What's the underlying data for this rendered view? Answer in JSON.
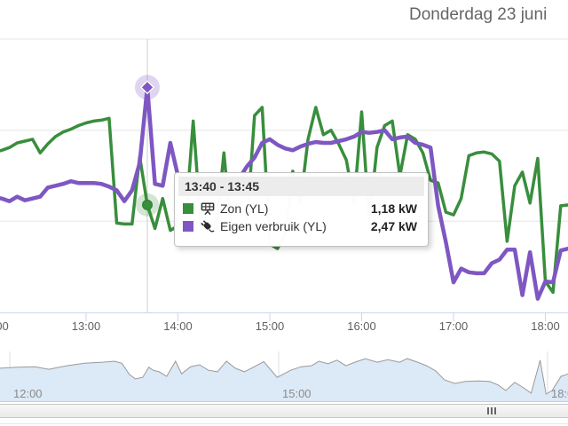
{
  "title": "Donderdag 23 juni",
  "tooltip": {
    "header": "13:40 - 13:45",
    "rows": [
      {
        "label": "Zon (YL)",
        "value": "1,18 kW",
        "color": "#388e3c",
        "icon": "solar-panel"
      },
      {
        "label": "Eigen verbruik (YL)",
        "value": "2,47 kW",
        "color": "#7e57c2",
        "icon": "power-plug"
      }
    ]
  },
  "colors": {
    "zon": "#388e3c",
    "eigen_verbruik": "#7e57c2",
    "gridline": "#e6e6e6",
    "axis_line": "#ccd6eb",
    "crosshair": "#cfcfcf",
    "navigator_fill": "#dce9f6",
    "navigator_outline": "#9a9a9a",
    "title_text": "#666666",
    "axis_label_text": "#606060"
  },
  "x_axis": {
    "tick_labels": [
      "12:00",
      "13:00",
      "14:00",
      "15:00",
      "16:00",
      "17:00",
      "18:00"
    ]
  },
  "chart_data": {
    "type": "line",
    "title": "Donderdag 23 juni",
    "xlabel": "",
    "ylabel": "kW",
    "ylim": [
      0,
      3
    ],
    "grid": "horizontal",
    "x_ticks": [
      "12:00",
      "13:00",
      "14:00",
      "15:00",
      "16:00",
      "17:00",
      "18:00"
    ],
    "visible_range": [
      "12:00",
      "18:15"
    ],
    "highlight": {
      "time": "13:40",
      "label": "13:40 - 13:45",
      "zon_kw": 1.18,
      "verbruik_kw": 2.47
    },
    "times": [
      "12:00",
      "12:05",
      "12:10",
      "12:15",
      "12:20",
      "12:25",
      "12:30",
      "12:35",
      "12:40",
      "12:45",
      "12:50",
      "12:55",
      "13:00",
      "13:05",
      "13:10",
      "13:15",
      "13:20",
      "13:25",
      "13:30",
      "13:35",
      "13:40",
      "13:45",
      "13:50",
      "13:55",
      "14:00",
      "14:05",
      "14:10",
      "14:15",
      "14:20",
      "14:25",
      "14:30",
      "14:35",
      "14:40",
      "14:45",
      "14:50",
      "14:55",
      "15:00",
      "15:05",
      "15:10",
      "15:15",
      "15:20",
      "15:25",
      "15:30",
      "15:35",
      "15:40",
      "15:45",
      "15:50",
      "15:55",
      "16:00",
      "16:05",
      "16:10",
      "16:15",
      "16:20",
      "16:25",
      "16:30",
      "16:35",
      "16:40",
      "16:45",
      "16:50",
      "16:55",
      "17:00",
      "17:05",
      "17:10",
      "17:15",
      "17:20",
      "17:25",
      "17:30",
      "17:35",
      "17:40",
      "17:45",
      "17:50",
      "17:55",
      "18:00",
      "18:05",
      "18:10",
      "18:15"
    ],
    "series": [
      {
        "name": "Zon (YL)",
        "color": "#388e3c",
        "values": [
          1.76,
          1.78,
          1.81,
          1.86,
          1.88,
          1.9,
          1.75,
          1.85,
          1.93,
          1.98,
          2.01,
          2.05,
          2.08,
          2.1,
          2.11,
          2.13,
          0.98,
          0.97,
          0.97,
          1.71,
          1.18,
          0.92,
          1.25,
          0.9,
          0.95,
          1.0,
          2.1,
          0.95,
          0.9,
          0.92,
          1.75,
          0.85,
          0.9,
          0.95,
          2.16,
          2.25,
          0.75,
          0.7,
          0.85,
          1.55,
          1.2,
          1.9,
          2.25,
          1.95,
          2.0,
          1.85,
          1.67,
          1.2,
          2.2,
          1.0,
          1.81,
          2.05,
          2.1,
          1.5,
          1.95,
          1.9,
          1.75,
          1.45,
          1.42,
          1.1,
          1.07,
          1.25,
          1.72,
          1.75,
          1.76,
          1.74,
          1.66,
          0.78,
          1.39,
          1.54,
          1.2,
          1.69,
          0.34,
          0.22,
          1.17,
          1.18
        ]
      },
      {
        "name": "Eigen verbruik (YL)",
        "color": "#7e57c2",
        "values": [
          1.26,
          1.25,
          1.22,
          1.27,
          1.23,
          1.25,
          1.27,
          1.37,
          1.39,
          1.41,
          1.44,
          1.42,
          1.42,
          1.42,
          1.41,
          1.38,
          1.34,
          1.22,
          1.34,
          1.64,
          2.47,
          1.41,
          1.39,
          1.86,
          1.5,
          1.45,
          1.48,
          1.44,
          1.46,
          1.43,
          1.45,
          1.44,
          1.47,
          1.6,
          1.7,
          1.86,
          1.9,
          1.84,
          1.8,
          1.78,
          1.82,
          1.85,
          1.87,
          1.86,
          1.86,
          1.88,
          1.9,
          1.93,
          1.98,
          1.97,
          1.98,
          2.0,
          1.9,
          1.92,
          1.93,
          1.86,
          1.84,
          1.81,
          1.17,
          0.77,
          0.33,
          0.48,
          0.44,
          0.43,
          0.43,
          0.54,
          0.58,
          0.69,
          0.69,
          0.19,
          0.66,
          0.15,
          0.34,
          0.33,
          0.68,
          0.7
        ]
      }
    ],
    "navigator": {
      "type": "area",
      "x_ticks": [
        "12:00",
        "15:00",
        "18:00"
      ],
      "times": [
        "11:53",
        "12:05",
        "12:17",
        "12:26",
        "12:38",
        "12:50",
        "13:02",
        "13:10",
        "13:15",
        "13:20",
        "13:24",
        "13:29",
        "13:33",
        "13:36",
        "13:40",
        "13:45",
        "13:51",
        "13:55",
        "14:01",
        "14:07",
        "14:13",
        "14:19",
        "14:25",
        "14:31",
        "14:37",
        "14:43",
        "14:50",
        "14:59",
        "15:08",
        "15:15",
        "15:22",
        "15:27",
        "15:33",
        "15:39",
        "15:45",
        "15:51",
        "15:58",
        "16:06",
        "16:13",
        "16:21",
        "16:26",
        "16:33",
        "16:39",
        "16:45",
        "16:51",
        "16:58",
        "17:05",
        "17:14",
        "17:21",
        "17:27",
        "17:32",
        "17:38",
        "17:43",
        "17:49",
        "17:55",
        "17:59",
        "18:03",
        "18:09",
        "18:14"
      ],
      "heights_norm": [
        0.65,
        0.67,
        0.68,
        0.63,
        0.7,
        0.75,
        0.77,
        0.79,
        0.75,
        0.53,
        0.44,
        0.47,
        0.67,
        0.61,
        0.58,
        0.49,
        0.79,
        0.54,
        0.68,
        0.72,
        0.61,
        0.58,
        0.79,
        0.65,
        0.58,
        0.67,
        0.78,
        0.47,
        0.61,
        0.68,
        0.7,
        0.79,
        0.74,
        0.81,
        0.7,
        0.77,
        0.84,
        0.77,
        0.82,
        0.77,
        0.84,
        0.77,
        0.7,
        0.6,
        0.42,
        0.35,
        0.39,
        0.4,
        0.39,
        0.32,
        0.21,
        0.37,
        0.28,
        0.16,
        0.81,
        0.14,
        0.21,
        0.49,
        0.54
      ]
    }
  }
}
